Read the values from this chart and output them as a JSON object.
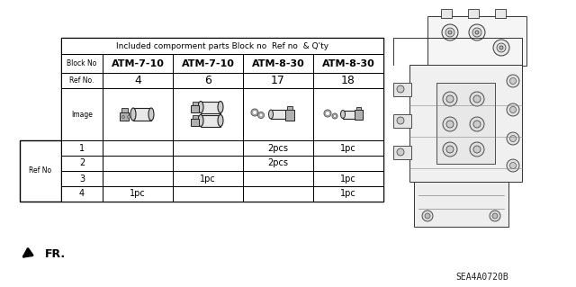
{
  "title": "Included comporment parts Block no  Ref no  & Q'ty",
  "block_no_label": "Block No",
  "ref_no_label": "Ref No.",
  "image_label": "Image",
  "ref_no_side_label": "Ref No",
  "block_headers": [
    "ATM-7-10",
    "ATM-7-10",
    "ATM-8-30",
    "ATM-8-30"
  ],
  "ref_nos": [
    "4",
    "6",
    "17",
    "18"
  ],
  "table_data": [
    [
      "1",
      "",
      "",
      "2pcs",
      "1pc"
    ],
    [
      "2",
      "",
      "",
      "2pcs",
      ""
    ],
    [
      "3",
      "",
      "1pc",
      "",
      "1pc"
    ],
    [
      "4",
      "1pc",
      "",
      "",
      "1pc"
    ]
  ],
  "part_code": "SEA4A0720B",
  "bg_color": "#ffffff",
  "table_line_color": "#000000"
}
